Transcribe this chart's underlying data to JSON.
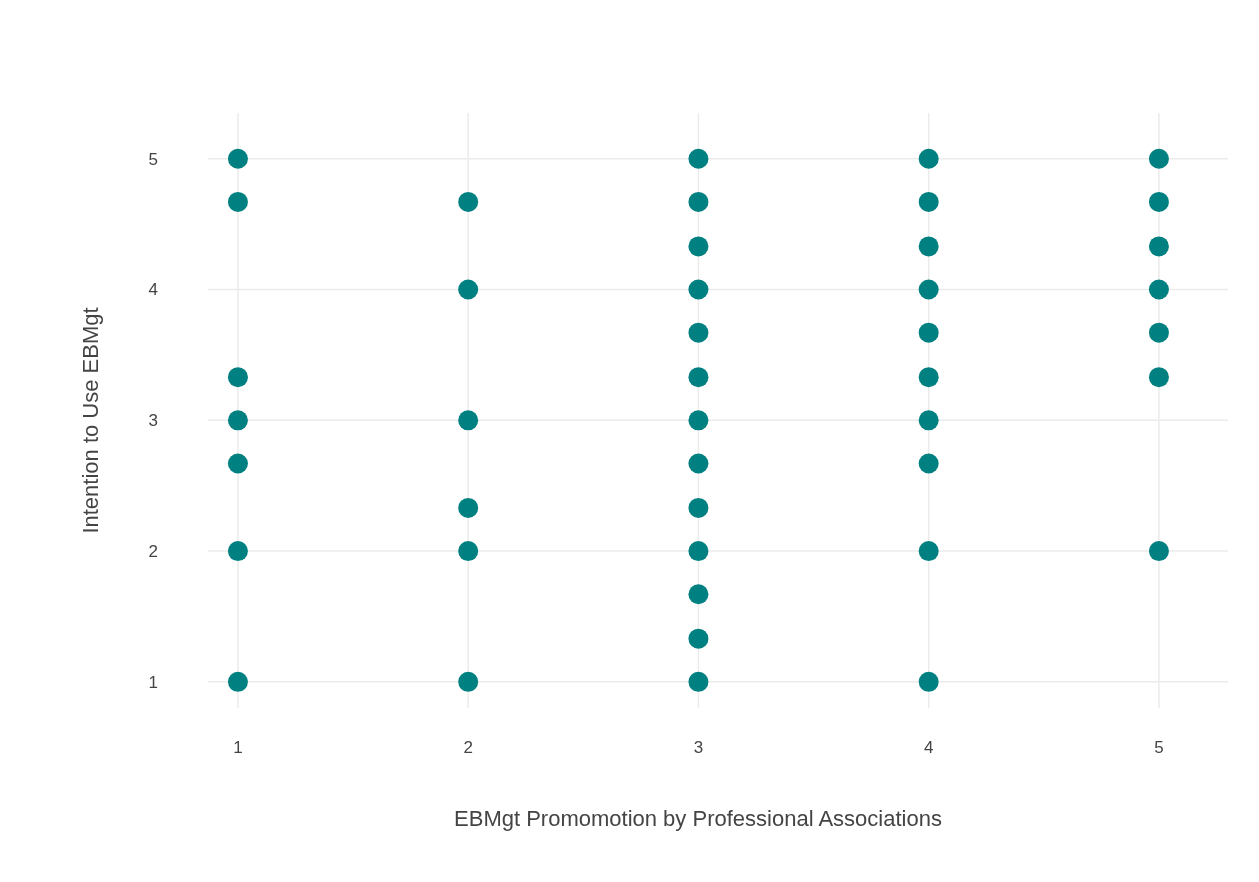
{
  "chart_data": {
    "type": "scatter",
    "xlabel": "EBMgt Promomotion by Professional Associations",
    "ylabel": "Intention to Use EBMgt",
    "series": [
      {
        "color": "#008080",
        "x": [
          1,
          1,
          1,
          1,
          1,
          1,
          1,
          2,
          2,
          2,
          2,
          2,
          2,
          3,
          3,
          3,
          3,
          3,
          3,
          3,
          3,
          3,
          3,
          3,
          3,
          3,
          4,
          4,
          4,
          4,
          4,
          4,
          4,
          4,
          4,
          4,
          5,
          5,
          5,
          5,
          5,
          5,
          5
        ],
        "values": [
          5,
          4.67,
          3.33,
          3,
          2.67,
          2,
          1,
          4.67,
          4,
          3,
          2.33,
          2,
          1,
          5,
          4.67,
          4.33,
          4,
          3.67,
          3.33,
          3,
          2.67,
          2.33,
          2,
          1.67,
          1.33,
          1,
          5,
          4.67,
          4.33,
          4,
          3.67,
          3.33,
          3,
          2.67,
          2,
          1,
          5,
          4.67,
          4.33,
          4,
          3.67,
          3.33,
          2
        ]
      }
    ],
    "xlim": [
      0.87,
      5.3
    ],
    "ylim": [
      0.8,
      5.35
    ],
    "xticks": [
      1,
      2,
      3,
      4,
      5
    ],
    "yticks": [
      1,
      2,
      3,
      4,
      5
    ],
    "grid": true,
    "marker": "circle"
  }
}
